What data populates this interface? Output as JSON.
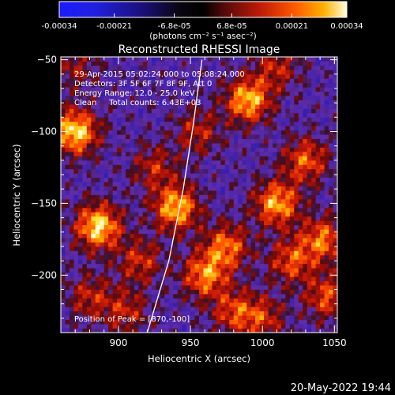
{
  "chart_data": {
    "type": "heatmap",
    "title": "Reconstructed RHESSI Image",
    "xlabel": "Heliocentric X (arcsec)",
    "ylabel": "Heliocentric Y (arcsec)",
    "xlim": [
      860,
      1052
    ],
    "ylim": [
      -240,
      -48
    ],
    "xticks": [
      900,
      950,
      1000,
      1050
    ],
    "yticks": [
      -50,
      -100,
      -150,
      -200
    ],
    "colorbar": {
      "min": -0.00034,
      "max": 0.00034,
      "ticks": [
        "-0.00034",
        "-0.00021",
        "-6.8e-05",
        "6.8e-05",
        "0.00021",
        "0.00034"
      ],
      "units_label": "(photons cm⁻² s⁻¹ asec⁻²)"
    },
    "annotations": [
      "29-Apr-2015 05:02:24.000 to 05:08:24.000",
      "Detectors: 3F 5F 6F 7F 8F 9F, Att 0",
      "Energy Range: 12.0 - 25.0 keV",
      "Clean     Total counts: 6.43E+03"
    ],
    "peak_label": "Position of Peak = [870,-100]",
    "peak_position": [
      870,
      -100
    ],
    "sources": [
      {
        "x": 886,
        "y": -166,
        "peak": 1.0
      },
      {
        "x": 870,
        "y": -100,
        "peak": 1.0
      },
      {
        "x": 990,
        "y": -78,
        "peak": 0.9
      },
      {
        "x": 940,
        "y": -153,
        "peak": 0.9
      },
      {
        "x": 1010,
        "y": -150,
        "peak": 0.85
      },
      {
        "x": 975,
        "y": -180,
        "peak": 0.7
      },
      {
        "x": 1030,
        "y": -120,
        "peak": 0.65
      },
      {
        "x": 1042,
        "y": -175,
        "peak": 0.7
      },
      {
        "x": 960,
        "y": -200,
        "peak": 0.75
      },
      {
        "x": 1045,
        "y": -215,
        "peak": 0.6
      },
      {
        "x": 980,
        "y": -225,
        "peak": 0.55
      },
      {
        "x": 1020,
        "y": -190,
        "peak": 0.6
      },
      {
        "x": 915,
        "y": -190,
        "peak": 0.5
      },
      {
        "x": 905,
        "y": -225,
        "peak": 0.45
      },
      {
        "x": 955,
        "y": -100,
        "peak": 0.45
      },
      {
        "x": 1000,
        "y": -230,
        "peak": 0.5
      },
      {
        "x": 880,
        "y": -215,
        "peak": 0.45
      },
      {
        "x": 925,
        "y": -125,
        "peak": 0.45
      },
      {
        "x": 1010,
        "y": -55,
        "peak": 0.45
      },
      {
        "x": 870,
        "y": -55,
        "peak": 0.35
      }
    ],
    "limb_curve": [
      [
        920,
        -240
      ],
      [
        935,
        -190
      ],
      [
        945,
        -140
      ],
      [
        952,
        -95
      ],
      [
        958,
        -50
      ]
    ],
    "grid": false
  },
  "footer_date": "20-May-2022 19:44"
}
